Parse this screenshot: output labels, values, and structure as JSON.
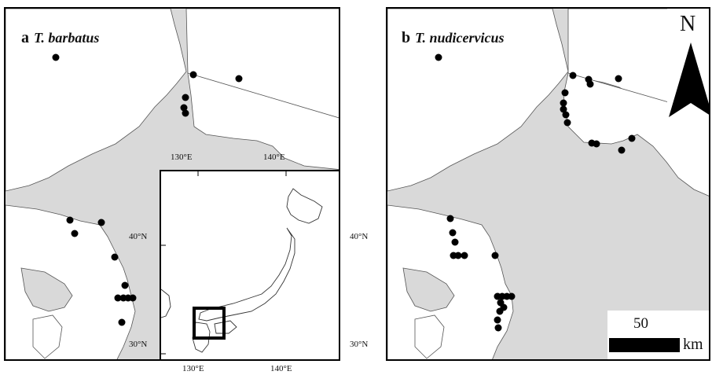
{
  "panel_a": {
    "letter": "a",
    "species": "T. barbatus",
    "lon_ticks": [
      "130°E",
      "140°E"
    ],
    "inset": {
      "lon_ticks": [
        "130°E",
        "140°E"
      ],
      "lat_ticks_left": [
        "40°N",
        "30°N"
      ],
      "lat_ticks_right": [
        "40°N",
        "30°N"
      ]
    }
  },
  "panel_b": {
    "letter": "b",
    "species": "T. nudicervicus"
  },
  "north_arrow": {
    "label": "N"
  },
  "scale_bar": {
    "value": "50",
    "unit": "km"
  },
  "colors": {
    "land": "#ffffff",
    "sea": "#d9d9d9",
    "points": "#000000",
    "frame": "#000000"
  }
}
